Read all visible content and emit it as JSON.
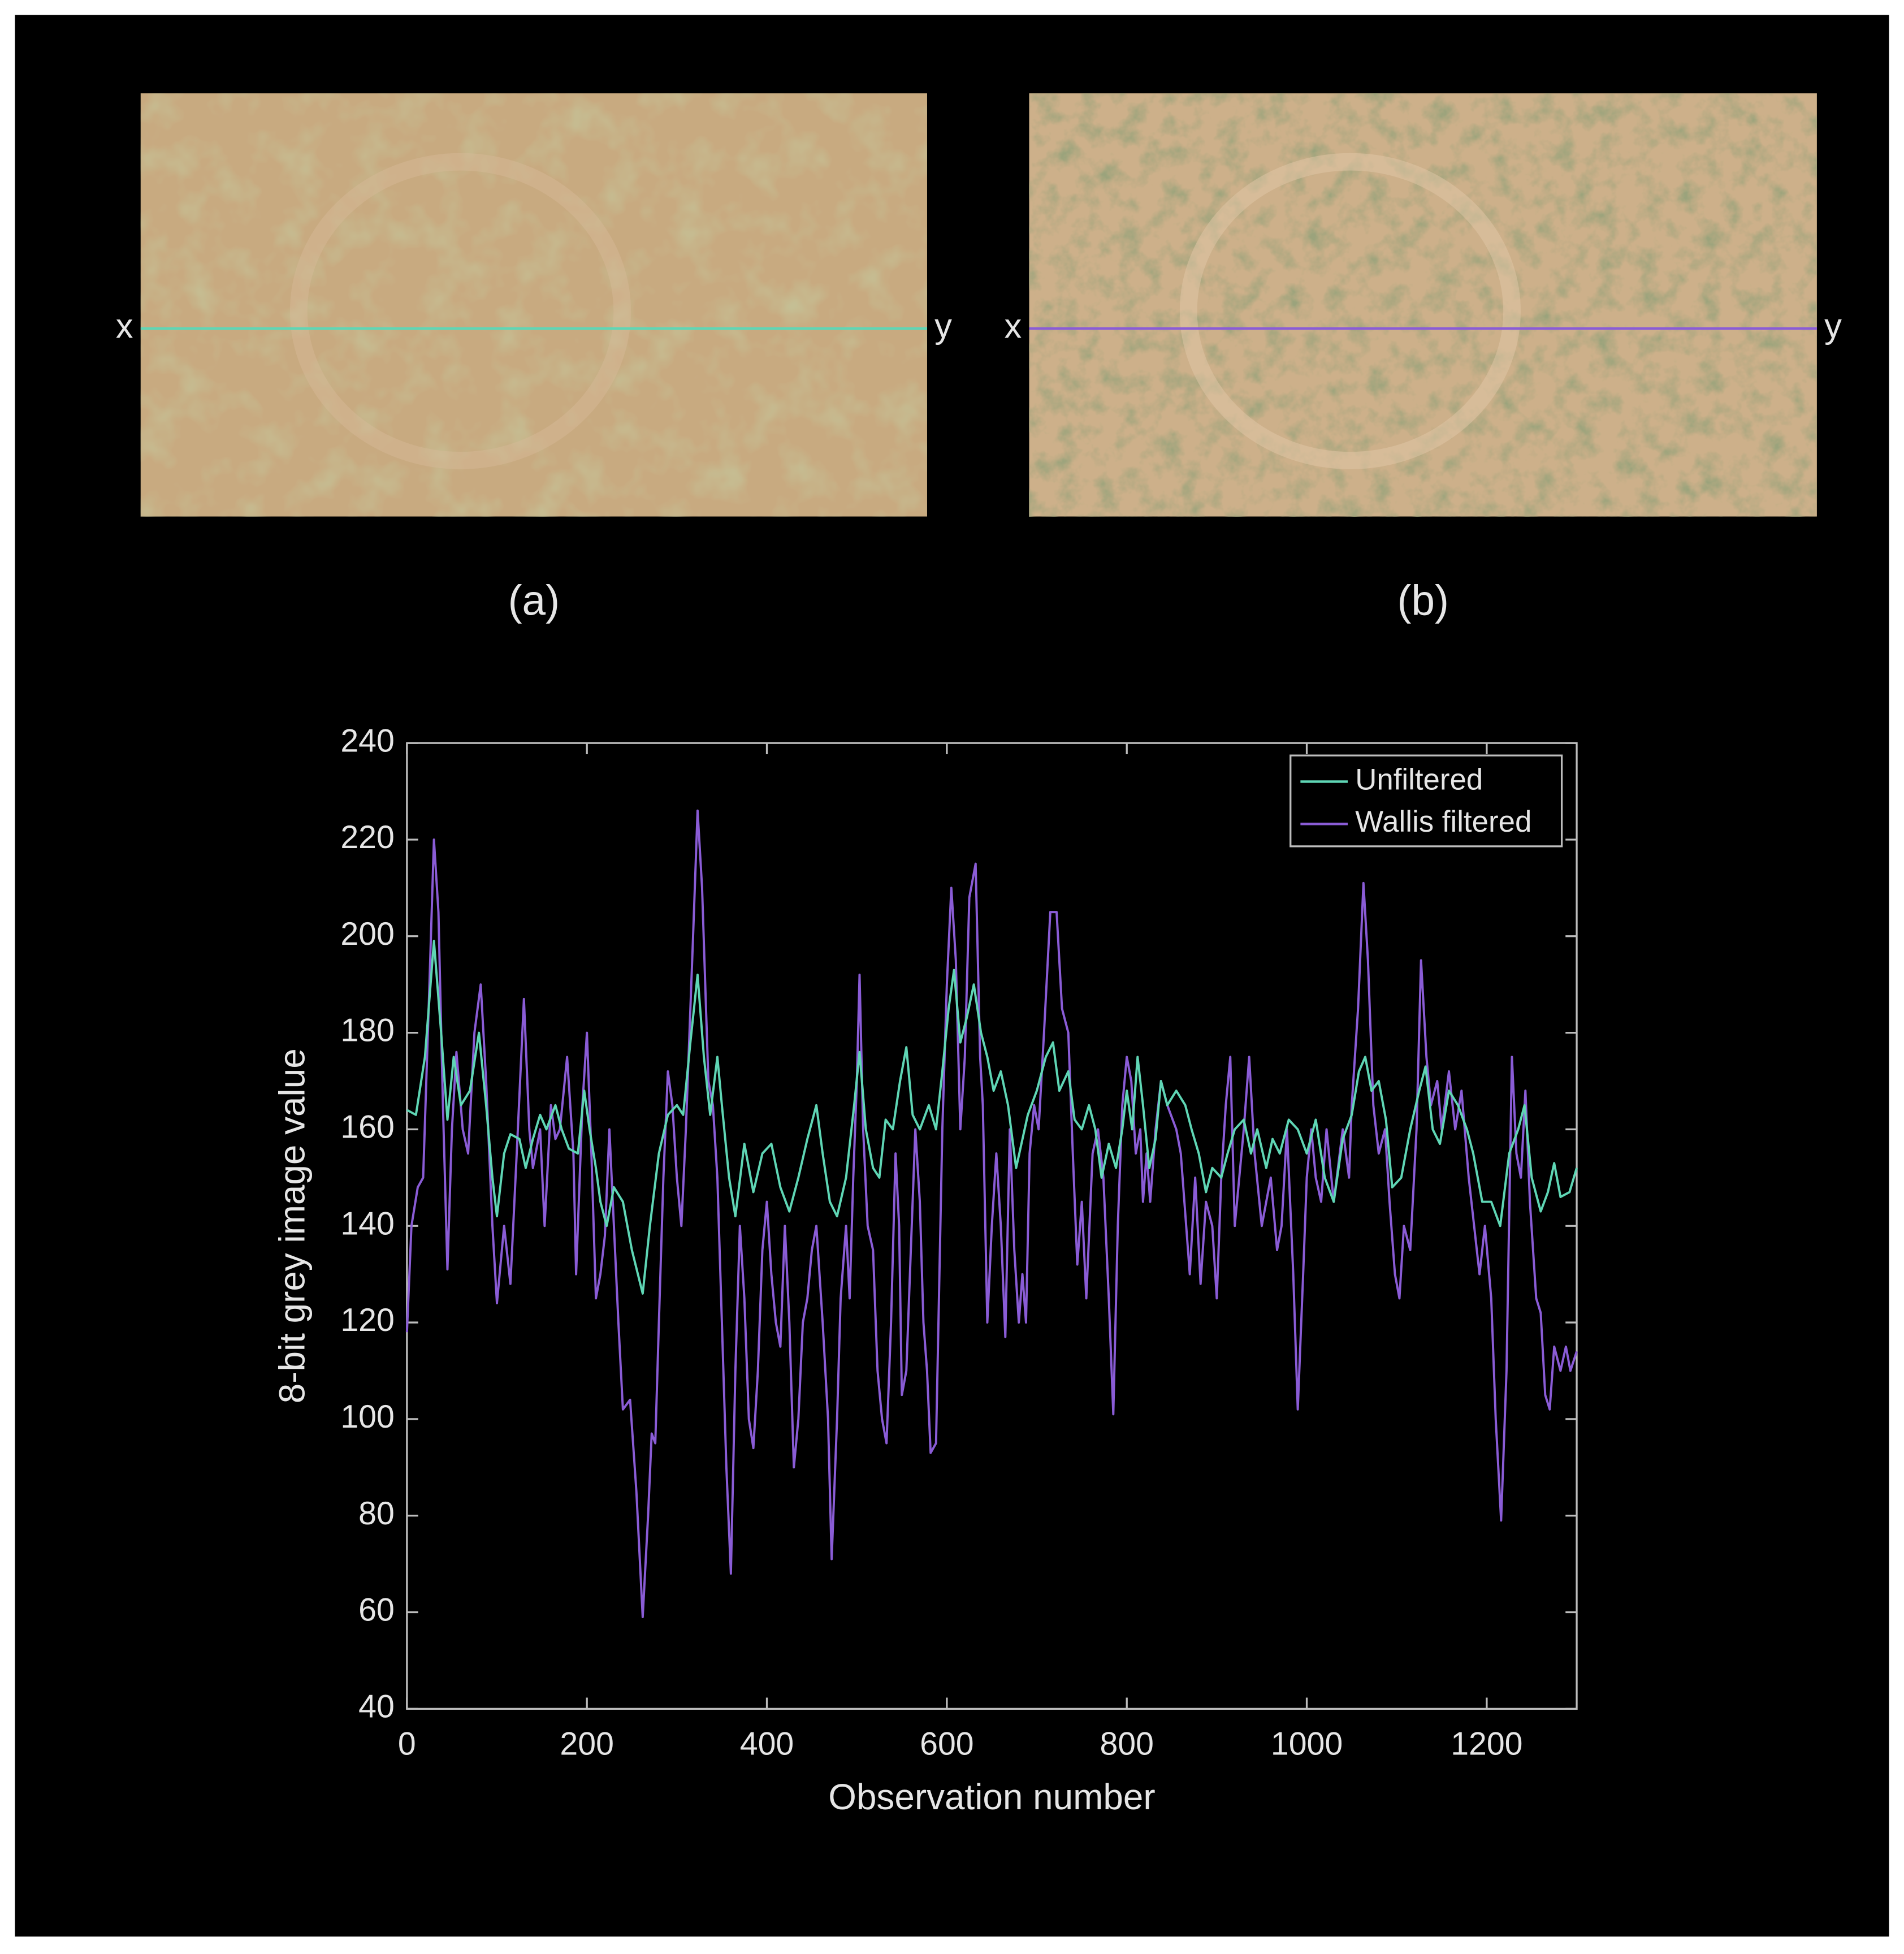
{
  "panels": [
    {
      "label": "(a)",
      "start": "x",
      "end": "y"
    },
    {
      "label": "(b)",
      "start": "x",
      "end": "y"
    }
  ],
  "chart_data": {
    "type": "line",
    "xlabel": "Observation number",
    "ylabel": "8-bit grey image value",
    "xlim": [
      0,
      1300
    ],
    "ylim": [
      40,
      240
    ],
    "xticks": [
      0,
      200,
      400,
      600,
      800,
      1000,
      1200
    ],
    "yticks": [
      40,
      60,
      80,
      100,
      120,
      140,
      160,
      180,
      200,
      220,
      240
    ],
    "grid": false,
    "legend": "upper right",
    "series": [
      {
        "name": "Unfiltered",
        "color": "#5fd6b5",
        "x": [
          0,
          10,
          20,
          30,
          38,
          45,
          52,
          60,
          70,
          80,
          88,
          95,
          100,
          108,
          115,
          125,
          132,
          140,
          148,
          155,
          165,
          172,
          180,
          190,
          197,
          203,
          210,
          215,
          222,
          230,
          240,
          250,
          262,
          270,
          280,
          290,
          300,
          307,
          315,
          323,
          330,
          337,
          345,
          350,
          358,
          365,
          375,
          385,
          395,
          405,
          415,
          425,
          435,
          445,
          455,
          462,
          470,
          478,
          488,
          497,
          503,
          510,
          518,
          525,
          532,
          540,
          548,
          555,
          562,
          570,
          580,
          588,
          595,
          602,
          608,
          615,
          622,
          630,
          638,
          645,
          652,
          660,
          668,
          677,
          690,
          700,
          710,
          718,
          725,
          735,
          742,
          750,
          758,
          765,
          772,
          780,
          788,
          795,
          800,
          806,
          812,
          818,
          825,
          832,
          838,
          845,
          855,
          865,
          872,
          880,
          888,
          895,
          905,
          912,
          920,
          930,
          938,
          945,
          955,
          962,
          970,
          980,
          990,
          1000,
          1010,
          1020,
          1030,
          1040,
          1050,
          1058,
          1065,
          1072,
          1080,
          1088,
          1095,
          1105,
          1115,
          1125,
          1132,
          1140,
          1148,
          1158,
          1168,
          1178,
          1185,
          1195,
          1205,
          1215,
          1225,
          1235,
          1242,
          1250,
          1260,
          1268,
          1275,
          1282,
          1292,
          1300
        ],
        "values": [
          164,
          163,
          175,
          199,
          180,
          162,
          175,
          165,
          168,
          180,
          165,
          150,
          142,
          155,
          159,
          158,
          152,
          158,
          163,
          160,
          165,
          160,
          156,
          155,
          168,
          160,
          152,
          145,
          140,
          148,
          145,
          135,
          126,
          140,
          155,
          163,
          165,
          163,
          178,
          192,
          175,
          163,
          175,
          165,
          150,
          142,
          157,
          147,
          155,
          157,
          148,
          143,
          150,
          158,
          165,
          155,
          145,
          142,
          150,
          165,
          176,
          160,
          152,
          150,
          162,
          160,
          170,
          177,
          163,
          160,
          165,
          160,
          172,
          185,
          193,
          178,
          183,
          190,
          180,
          175,
          168,
          172,
          165,
          152,
          163,
          168,
          175,
          178,
          168,
          172,
          162,
          160,
          165,
          160,
          150,
          157,
          152,
          160,
          168,
          160,
          175,
          165,
          152,
          158,
          170,
          165,
          168,
          165,
          160,
          155,
          147,
          152,
          150,
          155,
          160,
          162,
          155,
          160,
          152,
          158,
          155,
          162,
          160,
          155,
          162,
          150,
          145,
          158,
          163,
          172,
          175,
          168,
          170,
          162,
          148,
          150,
          160,
          168,
          173,
          160,
          157,
          168,
          165,
          160,
          155,
          145,
          145,
          140,
          155,
          160,
          165,
          150,
          143,
          147,
          153,
          146,
          147,
          152
        ]
      },
      {
        "name": "Wallis filtered",
        "color": "#8a5cd6",
        "x": [
          0,
          5,
          12,
          18,
          25,
          30,
          35,
          40,
          45,
          50,
          55,
          62,
          68,
          75,
          82,
          88,
          95,
          100,
          108,
          115,
          122,
          130,
          136,
          140,
          148,
          153,
          160,
          165,
          170,
          178,
          185,
          188,
          195,
          200,
          205,
          210,
          215,
          220,
          225,
          230,
          235,
          240,
          248,
          255,
          262,
          268,
          272,
          276,
          280,
          285,
          290,
          295,
          300,
          305,
          310,
          318,
          323,
          328,
          335,
          340,
          345,
          350,
          355,
          360,
          365,
          370,
          375,
          380,
          385,
          390,
          395,
          400,
          405,
          410,
          415,
          420,
          425,
          430,
          435,
          440,
          445,
          450,
          455,
          462,
          468,
          472,
          478,
          482,
          488,
          492,
          496,
          500,
          503,
          507,
          512,
          518,
          523,
          528,
          533,
          538,
          543,
          547,
          550,
          555,
          560,
          565,
          570,
          574,
          578,
          582,
          588,
          595,
          600,
          605,
          610,
          615,
          620,
          625,
          632,
          637,
          640,
          645,
          650,
          655,
          660,
          665,
          670,
          675,
          680,
          684,
          688,
          692,
          697,
          702,
          708,
          715,
          722,
          728,
          735,
          740,
          745,
          750,
          755,
          762,
          768,
          774,
          780,
          785,
          790,
          795,
          800,
          805,
          810,
          815,
          818,
          822,
          826,
          832,
          838,
          845,
          855,
          860,
          870,
          876,
          882,
          888,
          895,
          900,
          905,
          910,
          915,
          920,
          930,
          936,
          942,
          950,
          960,
          967,
          972,
          978,
          985,
          990,
          996,
          1000,
          1005,
          1010,
          1016,
          1022,
          1030,
          1040,
          1047,
          1050,
          1057,
          1063,
          1068,
          1074,
          1080,
          1087,
          1092,
          1098,
          1103,
          1108,
          1115,
          1122,
          1127,
          1133,
          1138,
          1145,
          1150,
          1158,
          1165,
          1172,
          1180,
          1186,
          1192,
          1198,
          1205,
          1210,
          1216,
          1222,
          1228,
          1233,
          1238,
          1243,
          1248,
          1255,
          1260,
          1265,
          1270,
          1275,
          1282,
          1288,
          1293,
          1300
        ],
        "values": [
          118,
          140,
          148,
          150,
          190,
          220,
          205,
          165,
          131,
          160,
          176,
          160,
          155,
          180,
          190,
          170,
          140,
          124,
          140,
          128,
          155,
          187,
          160,
          152,
          160,
          140,
          165,
          158,
          160,
          175,
          155,
          130,
          165,
          180,
          155,
          125,
          130,
          138,
          160,
          140,
          120,
          102,
          104,
          85,
          59,
          80,
          97,
          95,
          120,
          150,
          172,
          165,
          150,
          140,
          160,
          200,
          226,
          210,
          170,
          165,
          150,
          120,
          90,
          68,
          110,
          140,
          125,
          100,
          94,
          110,
          135,
          145,
          130,
          120,
          115,
          140,
          120,
          90,
          100,
          120,
          125,
          135,
          140,
          120,
          100,
          71,
          100,
          125,
          140,
          125,
          150,
          170,
          192,
          160,
          140,
          135,
          110,
          100,
          95,
          120,
          155,
          140,
          105,
          110,
          135,
          160,
          145,
          120,
          110,
          93,
          95,
          160,
          190,
          210,
          195,
          160,
          175,
          208,
          215,
          175,
          165,
          120,
          140,
          155,
          140,
          117,
          160,
          135,
          120,
          130,
          120,
          155,
          165,
          160,
          180,
          205,
          205,
          185,
          180,
          155,
          132,
          145,
          125,
          155,
          160,
          150,
          125,
          101,
          140,
          165,
          175,
          170,
          155,
          160,
          145,
          155,
          145,
          160,
          170,
          165,
          160,
          155,
          130,
          150,
          128,
          145,
          140,
          125,
          150,
          165,
          175,
          140,
          160,
          175,
          155,
          140,
          150,
          135,
          140,
          160,
          130,
          102,
          130,
          150,
          160,
          150,
          145,
          160,
          145,
          160,
          150,
          165,
          185,
          211,
          195,
          165,
          155,
          160,
          145,
          130,
          125,
          140,
          135,
          160,
          195,
          175,
          165,
          170,
          160,
          172,
          160,
          168,
          150,
          140,
          130,
          140,
          125,
          100,
          79,
          110,
          175,
          155,
          150,
          168,
          145,
          125,
          122,
          105,
          102,
          115,
          110,
          115,
          110,
          114
        ]
      }
    ]
  }
}
